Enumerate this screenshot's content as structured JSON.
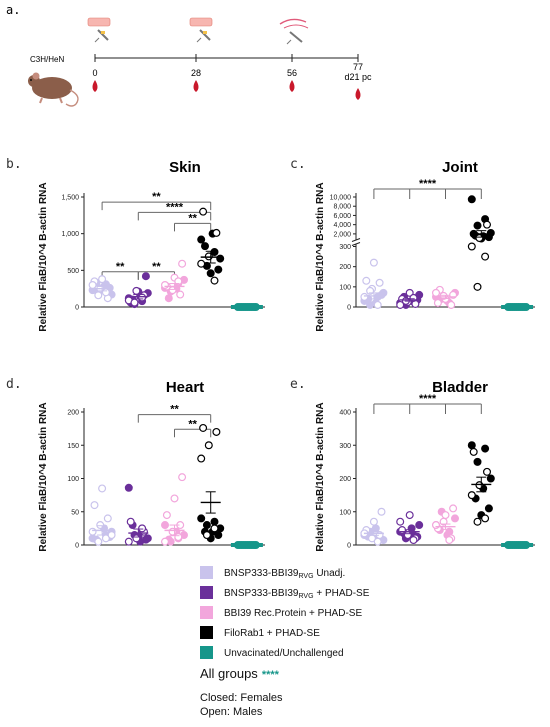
{
  "timeline": {
    "panel_label": "a.",
    "strain": "C3H/HeN",
    "days": [
      "0",
      "28",
      "56",
      "77"
    ],
    "end_sub": "d21 pc"
  },
  "legend": {
    "items": [
      {
        "text": "BNSP333-BBI39",
        "sub": "RVG",
        "suffix": " Unadj.",
        "color": "#c9c3ec"
      },
      {
        "text": "BNSP333-BBI39",
        "sub": "RVG",
        "suffix": " + PHAD-SE",
        "color": "#6a2f9a"
      },
      {
        "text": "BBI39 Rec.Protein + PHAD-SE",
        "sub": "",
        "suffix": "",
        "color": "#f2a6dc"
      },
      {
        "text": "FiloRab1 + PHAD-SE",
        "sub": "",
        "suffix": "",
        "color": "#000000"
      },
      {
        "text": "Unvacinated/Unchallenged",
        "sub": "",
        "suffix": "",
        "color": "#16968a"
      }
    ],
    "all_groups": "All groups",
    "all_groups_sig": "****",
    "note_closed": "Closed: Females",
    "note_open": "Open: Males"
  },
  "chart_data": [
    {
      "type": "scatter",
      "panel": "b.",
      "title": "Skin",
      "ylabel": "Relative FlaB/10^4 B-actin RNA",
      "ylim": [
        0,
        1500
      ],
      "yticks": [
        "0",
        "500",
        "1,000",
        "1,500"
      ],
      "ytick_values": [
        0,
        500,
        1000,
        1500
      ],
      "brackets": [
        {
          "from": 0,
          "to": 3,
          "label": "**",
          "y": 1430
        },
        {
          "from": 1,
          "to": 3,
          "label": "****",
          "y": 1290
        },
        {
          "from": 2,
          "to": 3,
          "label": "**",
          "y": 1140
        },
        {
          "from": 0,
          "to": 1,
          "label": "**",
          "y": 480
        },
        {
          "from": 1,
          "to": 2,
          "label": "**",
          "y": 480
        }
      ],
      "series": [
        {
          "filled": [
            230,
            310,
            200,
            170,
            280,
            330,
            260
          ],
          "open": [
            380,
            350,
            120,
            250,
            300,
            200,
            160
          ],
          "mean": 250,
          "sem": 30
        },
        {
          "filled": [
            120,
            80,
            40,
            190,
            150,
            100,
            420,
            210,
            60
          ],
          "open": [
            160,
            220,
            90,
            130,
            60
          ],
          "mean": 140,
          "sem": 30
        },
        {
          "filled": [
            260,
            320,
            210,
            370,
            250,
            120
          ],
          "open": [
            590,
            400,
            280,
            170,
            230,
            300,
            350
          ],
          "mean": 280,
          "sem": 40
        },
        {
          "filled": [
            920,
            750,
            560,
            660,
            1000,
            830,
            510,
            460
          ],
          "open": [
            1300,
            1010,
            690,
            590,
            360
          ],
          "mean": 680,
          "sem": 80
        },
        {
          "filled": [
            0,
            0,
            0,
            0,
            0,
            0,
            0,
            0,
            0,
            0
          ],
          "open": [],
          "mean": 0,
          "sem": 0
        }
      ]
    },
    {
      "type": "scatter",
      "panel": "c.",
      "title": "Joint",
      "ylabel": "Relative FlaB/10^4 B-actin RNA",
      "ylim": [
        0,
        10000
      ],
      "yticks": [
        "0",
        "100",
        "200",
        "300",
        "2,000",
        "4,000",
        "6,000",
        "8,000",
        "10,000"
      ],
      "ytick_values": [
        0,
        100,
        200,
        300,
        2000,
        4000,
        6000,
        8000,
        10000
      ],
      "y_break_at": 300,
      "brackets": [
        {
          "group_from": 0,
          "group_to": 3,
          "label": "****",
          "ticks": [
            0,
            1,
            2
          ]
        }
      ],
      "series": [
        {
          "filled": [
            30,
            50,
            10,
            70,
            20,
            40,
            60
          ],
          "open": [
            220,
            130,
            120,
            90,
            50,
            10,
            80
          ],
          "mean": 55,
          "sem": 15
        },
        {
          "filled": [
            20,
            40,
            10,
            60,
            30,
            50,
            35
          ],
          "open": [
            70,
            40,
            15,
            25,
            10,
            45,
            30
          ],
          "mean": 35,
          "sem": 6
        },
        {
          "filled": [
            50,
            20,
            40,
            70,
            30
          ],
          "open": [
            85,
            60,
            40,
            20,
            10,
            55,
            70
          ],
          "mean": 50,
          "sem": 8
        },
        {
          "filled": [
            9500,
            5200,
            3800,
            2200,
            1500,
            1600,
            1300,
            1000,
            2000
          ],
          "open": [
            4000,
            1100,
            300,
            250,
            100
          ],
          "mean": 2000,
          "sem": 700
        },
        {
          "filled": [
            0,
            0,
            0,
            0,
            0,
            0,
            0,
            0,
            0,
            0
          ],
          "open": [],
          "mean": 0,
          "sem": 0
        }
      ]
    },
    {
      "type": "scatter",
      "panel": "d.",
      "title": "Heart",
      "ylabel": "Relative FlaB/10^4 B-actin RNA",
      "ylim": [
        0,
        200
      ],
      "yticks": [
        "0",
        "50",
        "100",
        "150",
        "200"
      ],
      "ytick_values": [
        0,
        50,
        100,
        150,
        200
      ],
      "brackets": [
        {
          "from": 1,
          "to": 3,
          "label": "**",
          "y": 196
        },
        {
          "from": 2,
          "to": 3,
          "label": "**",
          "y": 174
        }
      ],
      "series": [
        {
          "filled": [
            10,
            15,
            5,
            20,
            25,
            8,
            12
          ],
          "open": [
            85,
            60,
            40,
            30,
            20,
            10,
            5,
            15
          ],
          "mean": 22,
          "sem": 7
        },
        {
          "filled": [
            86,
            20,
            15,
            10,
            5,
            30,
            8,
            12
          ],
          "open": [
            35,
            20,
            10,
            5,
            25
          ],
          "mean": 18,
          "sem": 6
        },
        {
          "filled": [
            30,
            10,
            5,
            15,
            20,
            8
          ],
          "open": [
            102,
            70,
            45,
            30,
            20,
            5,
            12
          ],
          "mean": 22,
          "sem": 8
        },
        {
          "filled": [
            40,
            35,
            30,
            25,
            20,
            20,
            15,
            10
          ],
          "open": [
            176,
            170,
            150,
            130,
            25,
            15
          ],
          "mean": 64,
          "sem": 16
        },
        {
          "filled": [
            0,
            0,
            0,
            0,
            0,
            0,
            0,
            0,
            0,
            0
          ],
          "open": [],
          "mean": 0,
          "sem": 0
        }
      ]
    },
    {
      "type": "scatter",
      "panel": "e.",
      "title": "Bladder",
      "ylabel": "Relative FlaB/10^4 B-actin RNA",
      "ylim": [
        0,
        400
      ],
      "yticks": [
        "0",
        "100",
        "200",
        "300",
        "400"
      ],
      "ytick_values": [
        0,
        100,
        200,
        300,
        400
      ],
      "brackets": [
        {
          "group_from": 0,
          "group_to": 3,
          "label": "****",
          "ticks": [
            0,
            1,
            2
          ]
        }
      ],
      "series": [
        {
          "filled": [
            30,
            20,
            40,
            15,
            50,
            25
          ],
          "open": [
            100,
            70,
            45,
            30,
            20,
            35,
            10
          ],
          "mean": 35,
          "sem": 6
        },
        {
          "filled": [
            40,
            30,
            20,
            60,
            50,
            35,
            25
          ],
          "open": [
            90,
            45,
            20,
            30,
            70,
            15
          ],
          "mean": 40,
          "sem": 6
        },
        {
          "filled": [
            60,
            40,
            100,
            80,
            30,
            45
          ],
          "open": [
            110,
            90,
            50,
            20,
            70,
            60,
            15
          ],
          "mean": 55,
          "sem": 8
        },
        {
          "filled": [
            300,
            290,
            250,
            200,
            170,
            140,
            110,
            90
          ],
          "open": [
            280,
            220,
            180,
            150,
            80,
            70
          ],
          "mean": 182,
          "sem": 22
        },
        {
          "filled": [
            0,
            0,
            0,
            0,
            0,
            0,
            0,
            0,
            0,
            0
          ],
          "open": [],
          "mean": 0,
          "sem": 0
        }
      ]
    }
  ]
}
